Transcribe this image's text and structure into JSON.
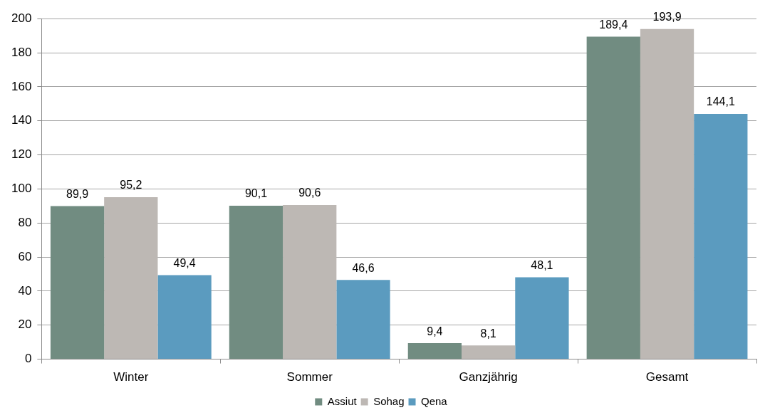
{
  "chart_data": {
    "type": "bar",
    "categories": [
      "Winter",
      "Sommer",
      "Ganzjährig",
      "Gesamt"
    ],
    "series": [
      {
        "name": "Assiut",
        "color": "#718c81",
        "values": [
          89.9,
          90.1,
          9.4,
          189.4
        ],
        "value_labels": [
          "89,9",
          "90,1",
          "9,4",
          "189,4"
        ]
      },
      {
        "name": "Sohag",
        "color": "#bdb8b4",
        "values": [
          95.2,
          90.6,
          8.1,
          193.9
        ],
        "value_labels": [
          "95,2",
          "90,6",
          "8,1",
          "193,9"
        ]
      },
      {
        "name": "Qena",
        "color": "#5b9bbf",
        "values": [
          49.4,
          46.6,
          48.1,
          144.1
        ],
        "value_labels": [
          "49,4",
          "46,6",
          "48,1",
          "144,1"
        ]
      }
    ],
    "ylim": [
      0,
      200
    ],
    "yticks": [
      0,
      20,
      40,
      60,
      80,
      100,
      120,
      140,
      160,
      180,
      200
    ],
    "grid": "y",
    "legend": "bottom"
  }
}
